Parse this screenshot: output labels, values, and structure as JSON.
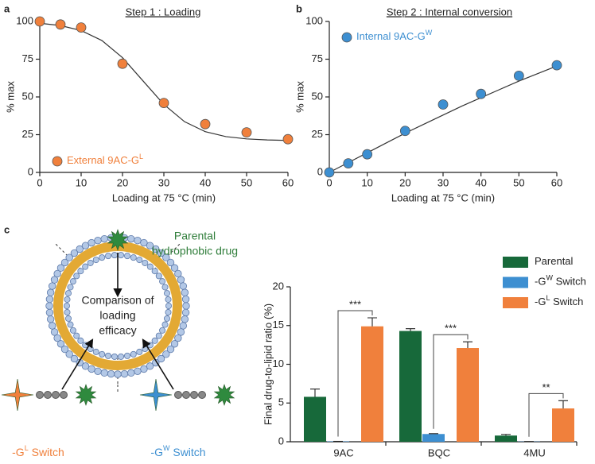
{
  "chart_data": [
    {
      "type": "scatter",
      "panel": "a",
      "title": "Step 1 : Loading",
      "xlabel": "Loading at 75 °C (min)",
      "ylabel": "% max",
      "x": [
        0,
        5,
        10,
        20,
        30,
        40,
        50,
        60
      ],
      "series": [
        {
          "name": "External 9AC-G",
          "name_sup": "L",
          "color": "#f0803c",
          "values": [
            100,
            98,
            96,
            72,
            46,
            32,
            26.5,
            22
          ]
        }
      ],
      "fit": {
        "color": "#333333",
        "x": [
          0,
          5,
          10,
          15,
          20,
          25,
          30,
          35,
          40,
          45,
          50,
          55,
          60
        ],
        "values": [
          98.8,
          97.3,
          94.0,
          87.4,
          76.0,
          60.5,
          45.0,
          33.6,
          27.0,
          23.7,
          22.2,
          21.5,
          21.2
        ]
      },
      "xlim": [
        0,
        60
      ],
      "xticks": [
        0,
        10,
        20,
        30,
        40,
        50,
        60
      ],
      "ylim": [
        0,
        100
      ],
      "yticks": [
        0,
        25,
        50,
        75,
        100
      ],
      "legend": "lower left"
    },
    {
      "type": "scatter",
      "panel": "b",
      "title": "Step 2 : Internal conversion",
      "xlabel": "Loading at 75 °C (min)",
      "ylabel": "% max",
      "x": [
        0,
        5,
        10,
        20,
        30,
        40,
        50,
        60
      ],
      "series": [
        {
          "name": "Internal 9AC-G",
          "name_sup": "W",
          "color": "#3d8fd1",
          "values": [
            0,
            6,
            12,
            27.5,
            45,
            52,
            64,
            71
          ]
        }
      ],
      "fit": {
        "color": "#333333",
        "x": [
          0,
          5,
          10,
          15,
          20,
          25,
          30,
          35,
          40,
          45,
          50,
          55,
          60
        ],
        "values": [
          0,
          6.5,
          13,
          19.5,
          26,
          32,
          38,
          44,
          49.5,
          55,
          60.5,
          65.5,
          70.5
        ]
      },
      "xlim": [
        0,
        60
      ],
      "xticks": [
        0,
        10,
        20,
        30,
        40,
        50,
        60
      ],
      "ylim": [
        0,
        100
      ],
      "yticks": [
        0,
        25,
        50,
        75,
        100
      ],
      "legend": "upper left"
    },
    {
      "type": "bar",
      "panel": "c",
      "ylabel": "Final drug-to-lipid ratio (%)",
      "categories": [
        "9AC",
        "BQC",
        "4MU"
      ],
      "series": [
        {
          "name": "Parental",
          "color": "#17693a",
          "values": [
            5.8,
            14.3,
            0.8
          ],
          "errors": [
            1.0,
            0.3,
            0.15
          ]
        },
        {
          "name": "-G",
          "name_sup": "W",
          "name_end": " Switch",
          "color": "#3d8fd1",
          "values": [
            0.05,
            1.0,
            0.03
          ],
          "errors": [
            0,
            0.05,
            0
          ]
        },
        {
          "name": "-G",
          "name_sup": "L",
          "name_end": " Switch",
          "color": "#f0803c",
          "values": [
            14.9,
            12.1,
            4.3
          ],
          "errors": [
            1.1,
            0.8,
            1.0
          ]
        }
      ],
      "significance": [
        "***",
        "***",
        "**"
      ],
      "ylim": [
        0,
        20
      ],
      "yticks": [
        0,
        5,
        10,
        15,
        20
      ],
      "legend": "upper right"
    }
  ],
  "diagram": {
    "parental_label": [
      "Parental",
      "hydrophobic drug"
    ],
    "center_label": [
      "Comparison of",
      "loading",
      "efficacy"
    ],
    "left_switch": {
      "text": "-G",
      "sup": "L",
      "end": " Switch"
    },
    "right_switch": {
      "text": "-G",
      "sup": "W",
      "end": " Switch"
    }
  }
}
